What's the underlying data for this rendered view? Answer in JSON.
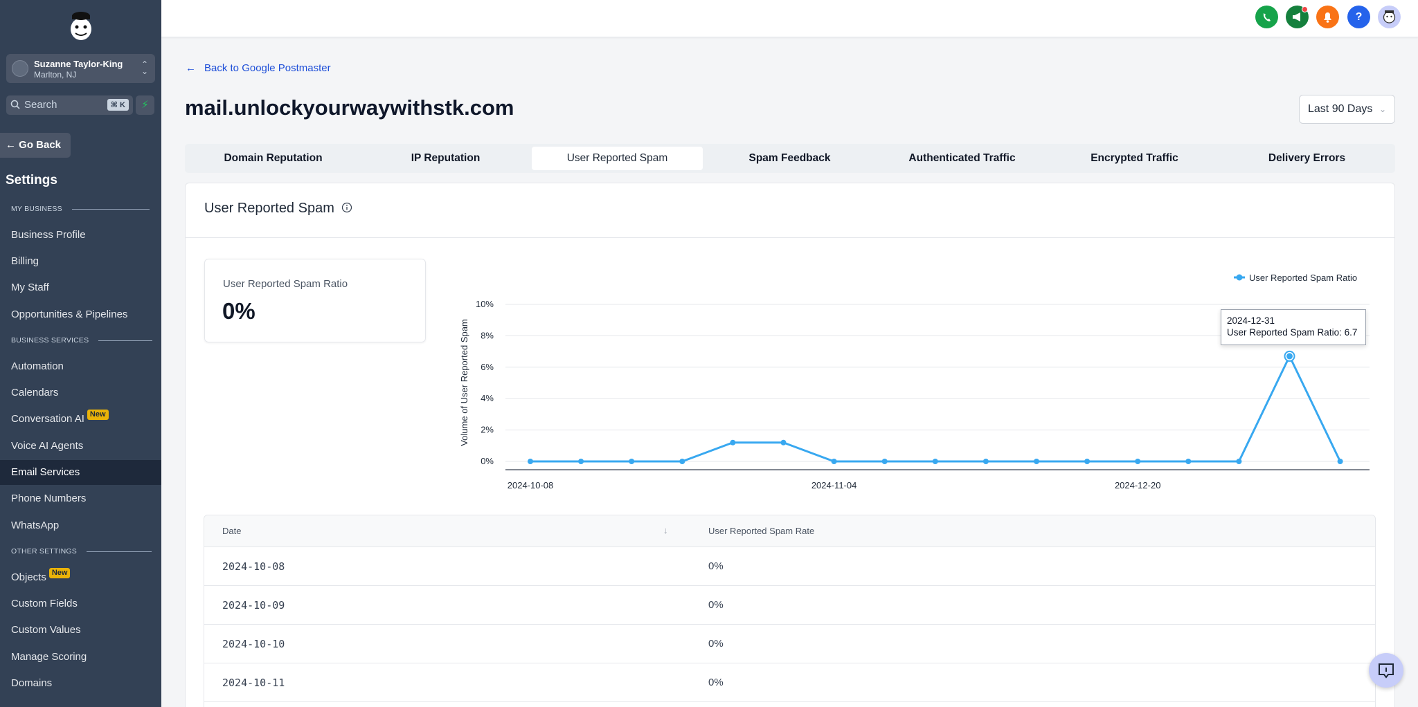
{
  "sidebar": {
    "account": {
      "name": "Suzanne Taylor-King",
      "location": "Marlton, NJ"
    },
    "search": {
      "placeholder": "Search",
      "shortcut": "⌘ K"
    },
    "go_back": "Go Back",
    "title": "Settings",
    "sections": {
      "my_business": "MY BUSINESS",
      "business_services": "BUSINESS SERVICES",
      "other_settings": "OTHER SETTINGS"
    },
    "items": [
      {
        "label": "Business Profile"
      },
      {
        "label": "Billing"
      },
      {
        "label": "My Staff"
      },
      {
        "label": "Opportunities & Pipelines"
      },
      {
        "label": "Automation"
      },
      {
        "label": "Calendars"
      },
      {
        "label": "Conversation AI",
        "badge": "New"
      },
      {
        "label": "Voice AI Agents"
      },
      {
        "label": "Email Services",
        "active": true
      },
      {
        "label": "Phone Numbers"
      },
      {
        "label": "WhatsApp"
      },
      {
        "label": "Objects",
        "badge": "New"
      },
      {
        "label": "Custom Fields"
      },
      {
        "label": "Custom Values"
      },
      {
        "label": "Manage Scoring"
      },
      {
        "label": "Domains"
      }
    ]
  },
  "topbar": {
    "colors": {
      "phone": "#16a34a",
      "announce": "#15803d",
      "bell": "#f97316",
      "help": "#2563eb"
    },
    "help_label": "?"
  },
  "header": {
    "back_link": "Back to Google Postmaster",
    "domain": "mail.unlockyourwaywithstk.com",
    "date_range": "Last 90 Days"
  },
  "tabs": [
    {
      "label": "Domain Reputation"
    },
    {
      "label": "IP Reputation"
    },
    {
      "label": "User Reported Spam",
      "active": true
    },
    {
      "label": "Spam Feedback"
    },
    {
      "label": "Authenticated Traffic"
    },
    {
      "label": "Encrypted Traffic"
    },
    {
      "label": "Delivery Errors"
    }
  ],
  "panel": {
    "title": "User Reported Spam",
    "stat_label": "User Reported Spam Ratio",
    "stat_value": "0%"
  },
  "chart_data": {
    "type": "line",
    "ylabel": "Volume of User Reported Spam",
    "y_ticks": [
      "0%",
      "2%",
      "4%",
      "6%",
      "8%",
      "10%"
    ],
    "ylim": [
      0,
      10
    ],
    "x_tick_labels": [
      "2024-10-08",
      "2024-11-04",
      "2024-12-20"
    ],
    "series": [
      {
        "name": "User Reported Spam Ratio",
        "color": "#38a8f0",
        "values": [
          0,
          0,
          0,
          0,
          1.2,
          1.2,
          0,
          0,
          0,
          0,
          0,
          0,
          0,
          0,
          0,
          6.7,
          0
        ]
      }
    ],
    "tooltip": {
      "date": "2024-12-31",
      "text": "User Reported Spam Ratio: 6.7"
    }
  },
  "table": {
    "headers": {
      "date": "Date",
      "rate": "User Reported Spam Rate"
    },
    "rows": [
      {
        "date": "2024-10-08",
        "rate": "0%"
      },
      {
        "date": "2024-10-09",
        "rate": "0%"
      },
      {
        "date": "2024-10-10",
        "rate": "0%"
      },
      {
        "date": "2024-10-11",
        "rate": "0%"
      }
    ]
  }
}
